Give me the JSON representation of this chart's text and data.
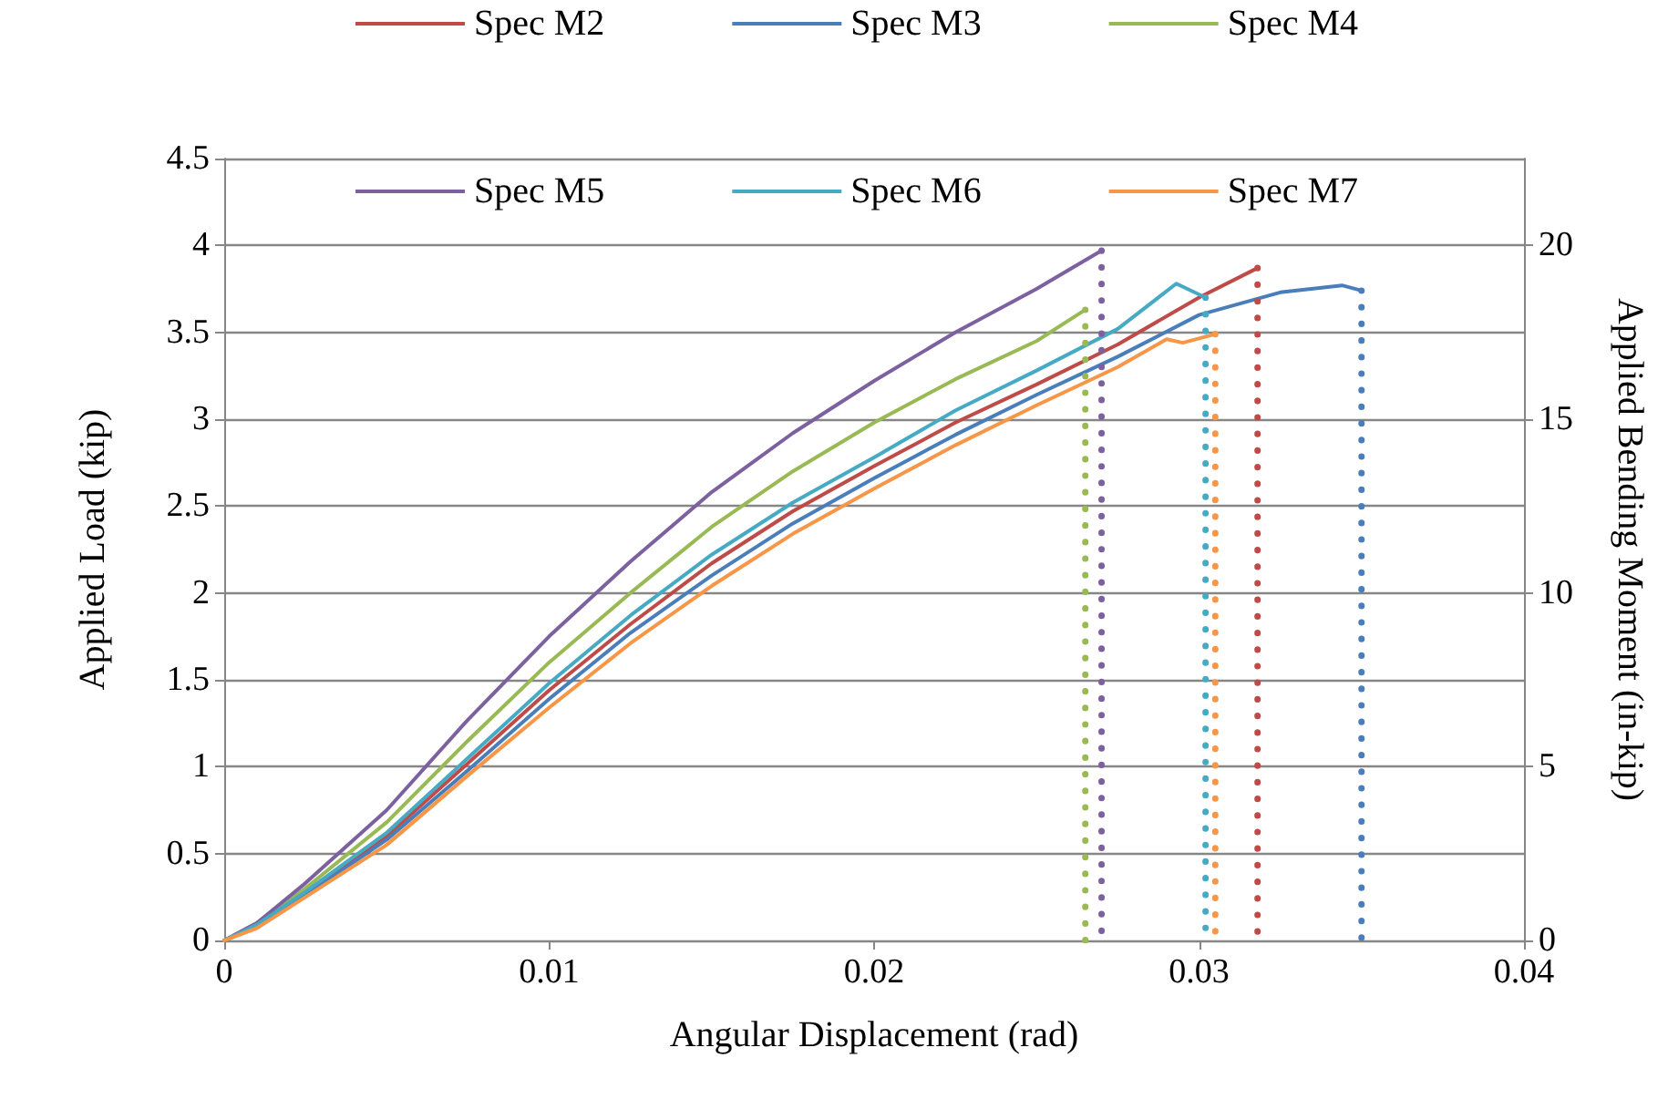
{
  "chart_data": {
    "type": "line",
    "xlabel": "Angular Displacement (rad)",
    "ylabel": "Applied Load (kip)",
    "y2label": "Applied Bending Moment (in-kip)",
    "xlim": [
      0,
      0.04
    ],
    "xticks": [
      0,
      0.01,
      0.02,
      0.03,
      0.04
    ],
    "ylim": [
      0,
      4.5
    ],
    "yticks": [
      0,
      0.5,
      1,
      1.5,
      2,
      2.5,
      3,
      3.5,
      4,
      4.5
    ],
    "y2lim": [
      0,
      22.5
    ],
    "y2ticks": [
      0,
      5,
      10,
      15,
      20
    ],
    "grid": "y",
    "legend": "top",
    "marker": "none",
    "line_style": "solid",
    "series": [
      {
        "name": "Spec M2",
        "color": "#be4b48",
        "x": [
          0,
          0.001,
          0.0025,
          0.005,
          0.0075,
          0.01,
          0.0125,
          0.015,
          0.0175,
          0.02,
          0.0225,
          0.025,
          0.0275,
          0.03,
          0.0318
        ],
        "values": [
          0,
          0.08,
          0.27,
          0.6,
          1.02,
          1.44,
          1.82,
          2.17,
          2.47,
          2.73,
          2.98,
          3.2,
          3.43,
          3.7,
          3.87
        ]
      },
      {
        "name": "Spec M3",
        "color": "#4a7ebb",
        "x": [
          0,
          0.001,
          0.0025,
          0.005,
          0.0075,
          0.01,
          0.0125,
          0.015,
          0.0175,
          0.02,
          0.0225,
          0.025,
          0.0275,
          0.03,
          0.0325,
          0.0344,
          0.035
        ],
        "values": [
          0,
          0.08,
          0.26,
          0.58,
          0.98,
          1.39,
          1.77,
          2.1,
          2.4,
          2.66,
          2.91,
          3.14,
          3.36,
          3.6,
          3.73,
          3.77,
          3.74
        ]
      },
      {
        "name": "Spec M4",
        "color": "#98b954",
        "x": [
          0,
          0.001,
          0.0025,
          0.005,
          0.0075,
          0.01,
          0.0125,
          0.015,
          0.0175,
          0.02,
          0.0225,
          0.025,
          0.0265
        ],
        "values": [
          0,
          0.1,
          0.3,
          0.68,
          1.15,
          1.6,
          2.0,
          2.38,
          2.7,
          2.98,
          3.23,
          3.45,
          3.63
        ]
      },
      {
        "name": "Spec M5",
        "color": "#7d60a0",
        "x": [
          0,
          0.001,
          0.0025,
          0.005,
          0.0075,
          0.01,
          0.0125,
          0.015,
          0.0175,
          0.02,
          0.0225,
          0.025,
          0.027
        ],
        "values": [
          0,
          0.1,
          0.33,
          0.75,
          1.27,
          1.75,
          2.18,
          2.58,
          2.92,
          3.22,
          3.5,
          3.75,
          3.97
        ]
      },
      {
        "name": "Spec M6",
        "color": "#46aac5",
        "x": [
          0,
          0.001,
          0.0025,
          0.005,
          0.0075,
          0.01,
          0.0125,
          0.015,
          0.0175,
          0.02,
          0.0225,
          0.025,
          0.0275,
          0.0293,
          0.0302
        ],
        "values": [
          0,
          0.09,
          0.28,
          0.62,
          1.05,
          1.48,
          1.87,
          2.22,
          2.52,
          2.78,
          3.05,
          3.28,
          3.52,
          3.78,
          3.7
        ]
      },
      {
        "name": "Spec M7",
        "color": "#f69646",
        "x": [
          0,
          0.001,
          0.0025,
          0.005,
          0.0075,
          0.01,
          0.0125,
          0.015,
          0.0175,
          0.02,
          0.0225,
          0.025,
          0.0275,
          0.029,
          0.0295,
          0.0305
        ],
        "values": [
          0,
          0.07,
          0.25,
          0.55,
          0.95,
          1.34,
          1.71,
          2.04,
          2.34,
          2.6,
          2.85,
          3.08,
          3.3,
          3.46,
          3.44,
          3.49
        ]
      },
      {
        "color": "#be4b48",
        "line_style": "dotted",
        "x": [
          0.0318,
          0.0318
        ],
        "values": [
          3.87,
          0
        ]
      },
      {
        "color": "#4a7ebb",
        "line_style": "dotted",
        "x": [
          0.035,
          0.035
        ],
        "values": [
          3.74,
          0
        ]
      },
      {
        "color": "#98b954",
        "line_style": "dotted",
        "x": [
          0.0265,
          0.0265
        ],
        "values": [
          3.63,
          0
        ]
      },
      {
        "color": "#7d60a0",
        "line_style": "dotted",
        "x": [
          0.027,
          0.027
        ],
        "values": [
          3.97,
          0
        ]
      },
      {
        "color": "#46aac5",
        "line_style": "dotted",
        "x": [
          0.0302,
          0.0302
        ],
        "values": [
          3.7,
          0
        ]
      },
      {
        "color": "#f69646",
        "line_style": "dotted",
        "x": [
          0.0305,
          0.0305
        ],
        "values": [
          3.49,
          0
        ]
      }
    ]
  }
}
